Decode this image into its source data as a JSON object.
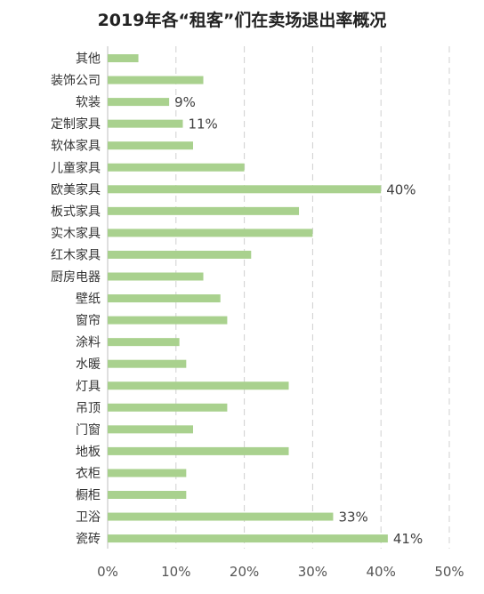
{
  "chart_data": {
    "type": "bar",
    "orientation": "horizontal",
    "title": "2019年各“租客”们在卖场退出率概况",
    "categories": [
      "其他",
      "装饰公司",
      "软装",
      "定制家具",
      "软体家具",
      "儿童家具",
      "欧美家具",
      "板式家具",
      "实木家具",
      "红木家具",
      "厨房电器",
      "壁纸",
      "窗帘",
      "涂料",
      "水暖",
      "灯具",
      "吊顶",
      "门窗",
      "地板",
      "衣柜",
      "橱柜",
      "卫浴",
      "瓷砖"
    ],
    "values": [
      4.5,
      14,
      9,
      11,
      12.5,
      20,
      40,
      28,
      30,
      21,
      14,
      16.5,
      17.5,
      10.5,
      11.5,
      26.5,
      17.5,
      12.5,
      26.5,
      11.5,
      11.5,
      33,
      41
    ],
    "data_labels": {
      "软装": "9%",
      "定制家具": "11%",
      "欧美家具": "40%",
      "卫浴": "33%",
      "瓷砖": "41%"
    },
    "xlim": [
      0,
      50
    ],
    "xticks": [
      "0%",
      "10%",
      "20%",
      "30%",
      "40%",
      "50%"
    ],
    "grid": "vertical-dashed",
    "bar_color": "#a9d18e"
  }
}
